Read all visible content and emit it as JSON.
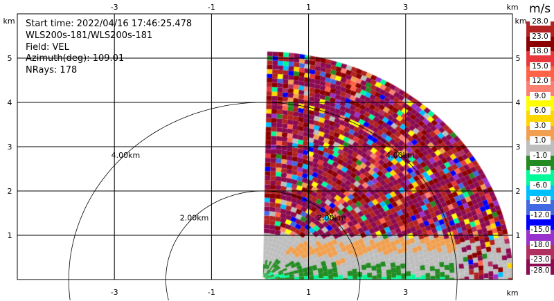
{
  "info": {
    "start_time": "Start time: 2022/04/16 17:46:25.478",
    "instrument": "WLS200s-181/WLS200s-181",
    "field": "Field: VEL",
    "azimuth": "Azimuth(deg): 109.01",
    "nrays": "NRays: 178"
  },
  "chart_data": {
    "type": "heatmap",
    "subtype": "radar-ppi-sector",
    "x_unit": "km",
    "y_unit": "km",
    "xlim": [
      -5.0,
      5.2
    ],
    "ylim": [
      0,
      6.0
    ],
    "x_ticks": [
      -3,
      -1,
      1,
      3
    ],
    "y_ticks": [
      1,
      2,
      3,
      4,
      5
    ],
    "grid": true,
    "range_rings": [
      {
        "radius_km": 2,
        "label": "2.00km"
      },
      {
        "radius_km": 4,
        "label": "4.00km"
      }
    ],
    "data_extent": {
      "max_range_km": 5.1,
      "azimuth_start_deg": 1,
      "azimuth_end_deg": 92
    },
    "colorbar": {
      "title": "m/s",
      "levels": [
        "28.0",
        "23.0",
        "18.0",
        "15.0",
        "12.0",
        "9.0",
        "6.0",
        "3.0",
        "1.0",
        "-1.0",
        "-3.0",
        "-6.0",
        "-9.0",
        "-12.0",
        "-15.0",
        "-18.0",
        "-23.0",
        "-28.0"
      ],
      "colors": [
        "#b22222",
        "#8b0000",
        "#e8383d",
        "#ff6347",
        "#fa8072",
        "#ffff00",
        "#ffd700",
        "#f0a050",
        "#bebebe",
        "#228b22",
        "#00fa9a",
        "#00bfff",
        "#4169e1",
        "#0000ff",
        "#9932cc",
        "#b03060",
        "#8b0a50"
      ]
    }
  }
}
